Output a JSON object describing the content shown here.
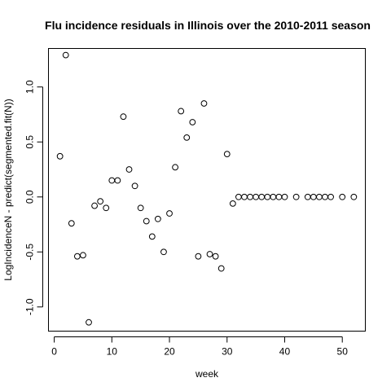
{
  "chart_data": {
    "type": "scatter",
    "title": "Flu incidence residuals in Illinois over the 2010-2011 season",
    "xlabel": "week",
    "ylabel": "LogIncidenceN - predict(segmented.fit(N))",
    "xlim": [
      -1,
      54
    ],
    "ylim": [
      -1.22,
      1.35
    ],
    "xticks": [
      0,
      10,
      20,
      30,
      40,
      50
    ],
    "yticks": [
      -1.0,
      -0.5,
      0.0,
      0.5,
      1.0
    ],
    "ytick_labels": [
      "-1.0",
      "-0.5",
      "0.0",
      "0.5",
      "1.0"
    ],
    "grid": false,
    "marker": "open-circle",
    "x": [
      1,
      2,
      3,
      4,
      5,
      6,
      7,
      8,
      9,
      10,
      11,
      12,
      13,
      14,
      15,
      16,
      17,
      18,
      19,
      20,
      21,
      22,
      23,
      24,
      25,
      26,
      27,
      28,
      29,
      30,
      31,
      32,
      33,
      34,
      35,
      36,
      37,
      38,
      39,
      40,
      42,
      44,
      45,
      46,
      47,
      48,
      50,
      52
    ],
    "y": [
      0.37,
      1.29,
      -0.24,
      -0.54,
      -0.53,
      -1.14,
      -0.08,
      -0.04,
      -0.1,
      0.15,
      0.15,
      0.73,
      0.25,
      0.1,
      -0.1,
      -0.22,
      -0.36,
      -0.2,
      -0.5,
      -0.15,
      0.27,
      0.78,
      0.54,
      0.68,
      -0.54,
      0.85,
      -0.52,
      -0.54,
      -0.65,
      0.39,
      -0.06,
      0.0,
      0.0,
      0.0,
      0.0,
      0.0,
      0.0,
      0.0,
      0.0,
      0.0,
      0.0,
      0.0,
      0.0,
      0.0,
      0.0,
      0.0,
      0.0,
      0.0
    ]
  }
}
